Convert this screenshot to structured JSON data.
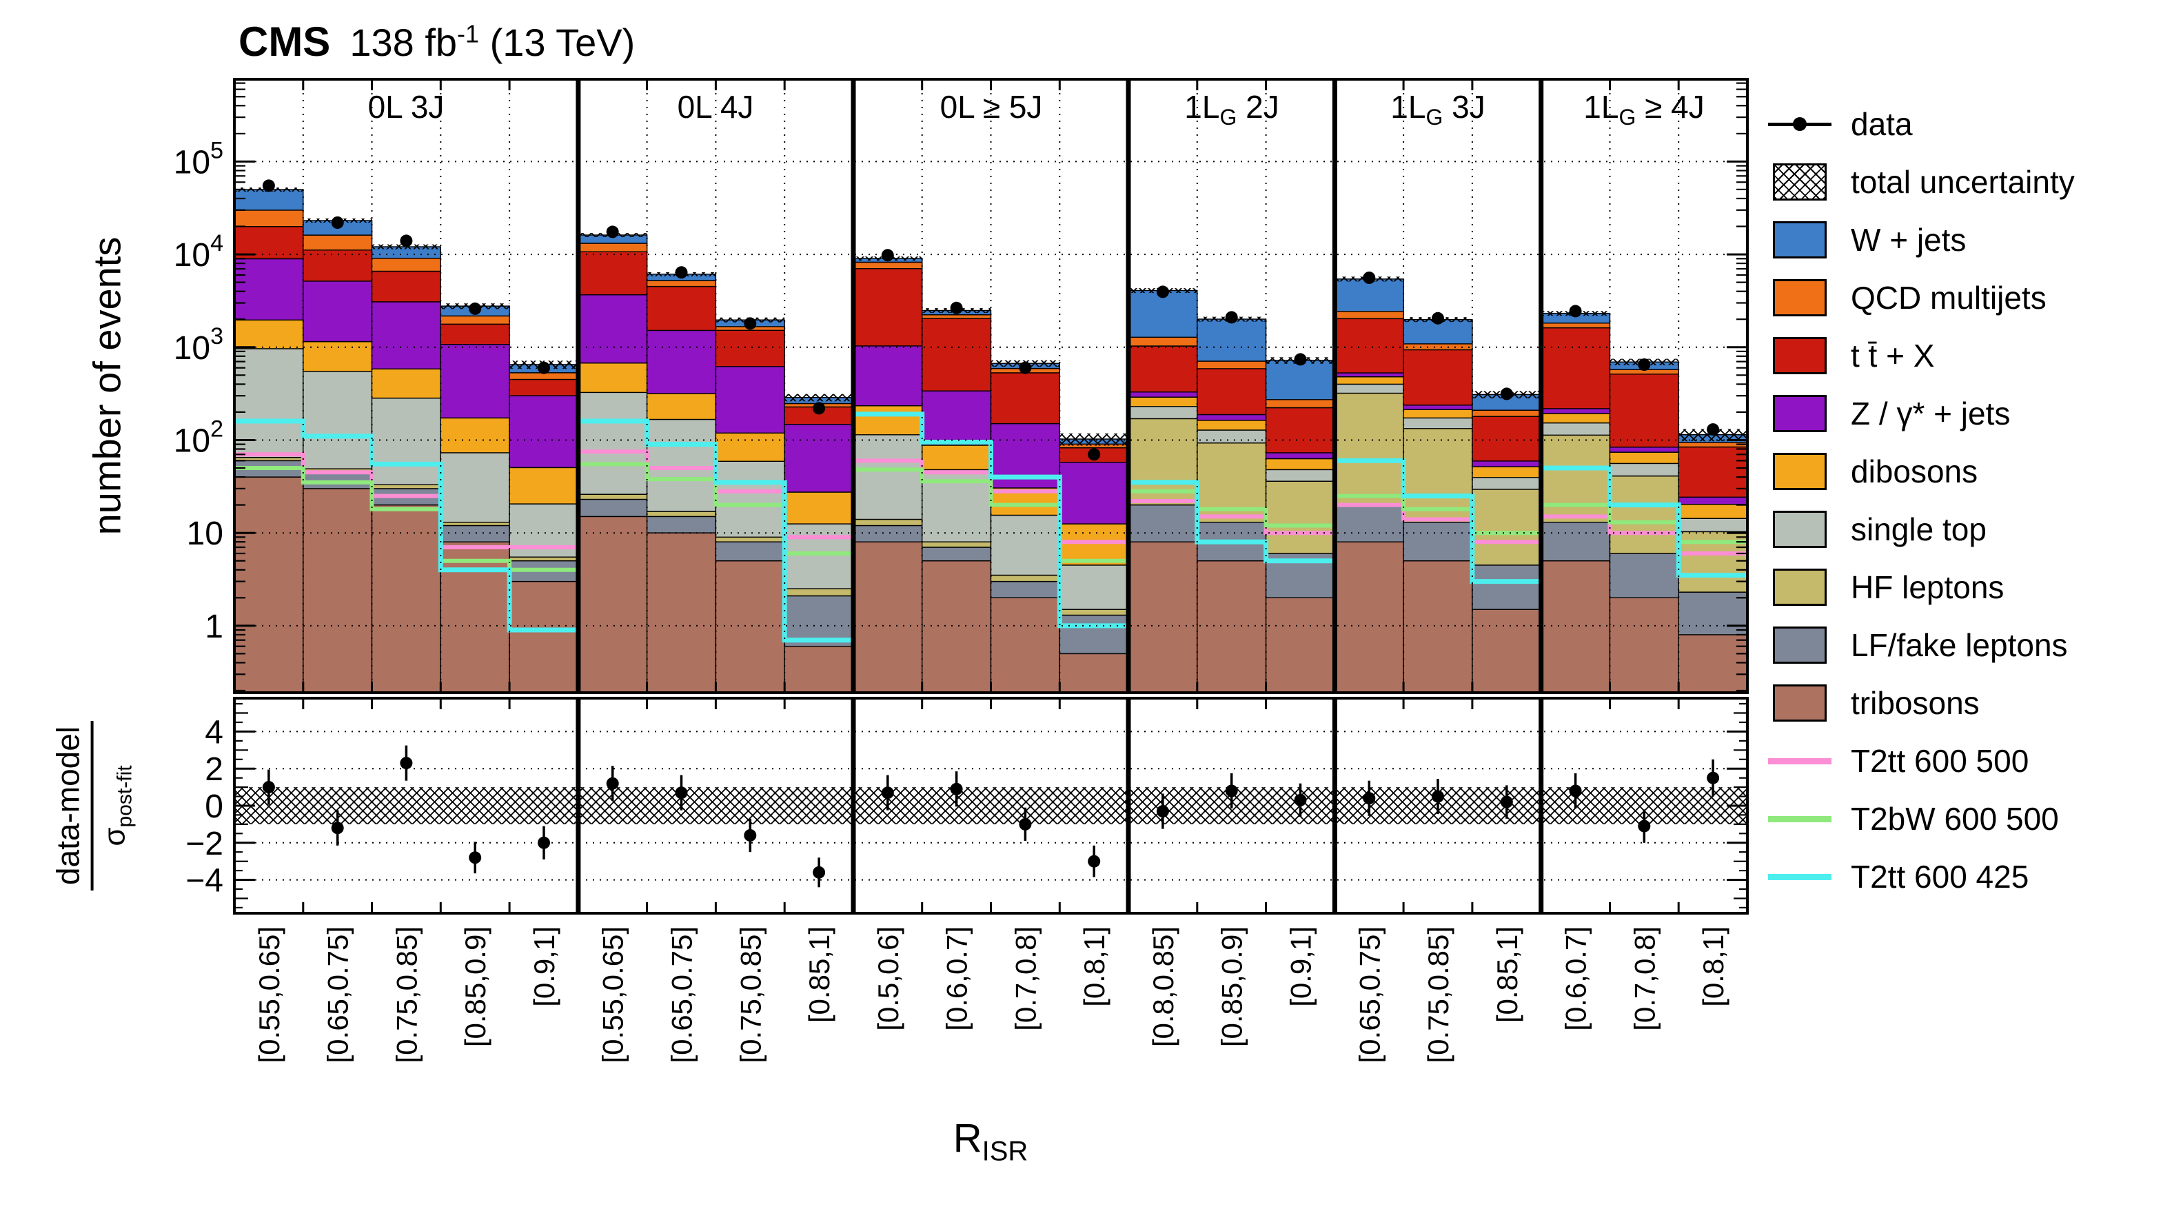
{
  "header": {
    "cms": "CMS",
    "lumi_pre": "138 fb",
    "lumi_sup": "-1",
    "lumi_post": " (13 TeV)"
  },
  "axes": {
    "y_main_title": "number of events",
    "ratio_numerator": "data-model",
    "ratio_sigma": "σ",
    "ratio_sigma_sub": "post-fit",
    "x_title": "R",
    "x_title_sub": "ISR",
    "y_main_ticks": [
      {
        "v": 1,
        "base": "1",
        "exp": ""
      },
      {
        "v": 10,
        "base": "10",
        "exp": ""
      },
      {
        "v": 100,
        "base": "10",
        "exp": "2"
      },
      {
        "v": 1000,
        "base": "10",
        "exp": "3"
      },
      {
        "v": 10000,
        "base": "10",
        "exp": "4"
      },
      {
        "v": 100000,
        "base": "10",
        "exp": "5"
      }
    ],
    "ratio_ticks": [
      {
        "v": 4,
        "label": "4"
      },
      {
        "v": 2,
        "label": "2"
      },
      {
        "v": 0,
        "label": "0"
      },
      {
        "v": -2,
        "label": "−2"
      },
      {
        "v": -4,
        "label": "−4"
      }
    ]
  },
  "legend": {
    "data_label": "data",
    "uncertainty_label": "total uncertainty"
  },
  "chart_data": {
    "type": "stacked-histogram-with-ratio",
    "log_y": true,
    "ylim_main": [
      0.19,
      770000
    ],
    "ylim_ratio": [
      -5.8,
      5.8
    ],
    "ratio_band": [
      -1,
      1
    ],
    "grid_decades": [
      1,
      10,
      100,
      1000,
      10000,
      100000
    ],
    "ratio_gridlines": [
      -4,
      -2,
      2,
      4
    ],
    "components": [
      {
        "key": "tribosons",
        "label": "tribosons",
        "color": "#ad7260"
      },
      {
        "key": "lf_fake_leptons",
        "label": "LF/fake leptons",
        "color": "#7e8798"
      },
      {
        "key": "hf_leptons",
        "label": "HF leptons",
        "color": "#c5b96b"
      },
      {
        "key": "single_top",
        "label": "single top",
        "color": "#b7c0b7"
      },
      {
        "key": "dibosons",
        "label": "dibosons",
        "color": "#f2a71c"
      },
      {
        "key": "z_jets",
        "label": "Z / γ* + jets",
        "color": "#8f14c4"
      },
      {
        "key": "ttbar_x",
        "label": "t t̄ + X",
        "color": "#cb1b10"
      },
      {
        "key": "qcd_multijets",
        "label": "QCD multijets",
        "color": "#f07018"
      },
      {
        "key": "w_jets",
        "label": "W + jets",
        "color": "#3e7dc8"
      }
    ],
    "signals": [
      {
        "key": "t2tt_600_500",
        "label": "T2tt 600 500",
        "color": "#fb8ed4",
        "width": 6
      },
      {
        "key": "t2bw_600_500",
        "label": "T2bW 600 500",
        "color": "#8fe97c",
        "width": 6
      },
      {
        "key": "t2tt_600_425",
        "label": "T2tt 600 425",
        "color": "#4deeee",
        "width": 7
      }
    ],
    "regions": [
      {
        "label_a": "0L 3J",
        "label_sub": "",
        "label_b": "",
        "bins": [
          "[0.55,0.65]",
          "[0.65,0.75]",
          "[0.75,0.85]",
          "[0.85,0.9]",
          "[0.9,1]"
        ],
        "stacks": {
          "tribosons": [
            40,
            30,
            20,
            8,
            3
          ],
          "lf_fake_leptons": [
            20,
            15,
            10,
            4,
            2
          ],
          "hf_leptons": [
            5,
            4,
            3,
            1,
            0.5
          ],
          "single_top": [
            900,
            500,
            250,
            60,
            15
          ],
          "dibosons": [
            1000,
            600,
            300,
            100,
            30
          ],
          "z_jets": [
            7000,
            4000,
            2500,
            900,
            250
          ],
          "ttbar_x": [
            11000,
            6000,
            3500,
            700,
            150
          ],
          "qcd_multijets": [
            10000,
            5000,
            2500,
            400,
            80
          ],
          "w_jets": [
            20000,
            7000,
            3000,
            600,
            120
          ]
        },
        "unc_rel": [
          0.05,
          0.05,
          0.06,
          0.07,
          0.1
        ],
        "data": [
          55000,
          22000,
          14000,
          2600,
          600
        ],
        "signals": {
          "t2tt_600_500": [
            70,
            45,
            25,
            7,
            7
          ],
          "t2bw_600_500": [
            50,
            35,
            18,
            5,
            4
          ],
          "t2tt_600_425": [
            160,
            110,
            55,
            4,
            0.9
          ]
        },
        "pulls": [
          1.0,
          -1.2,
          2.3,
          -2.8,
          -2.0
        ],
        "pull_err": [
          0.95,
          0.95,
          0.95,
          0.85,
          0.9
        ]
      },
      {
        "label_a": "0L 4J",
        "label_sub": "",
        "label_b": "",
        "bins": [
          "[0.55,0.65]",
          "[0.65,0.75]",
          "[0.75,0.85]",
          "[0.85,1]"
        ],
        "stacks": {
          "tribosons": [
            15,
            10,
            5,
            0.6
          ],
          "lf_fake_leptons": [
            8,
            5,
            3,
            1.5
          ],
          "hf_leptons": [
            3,
            2,
            1,
            0.4
          ],
          "single_top": [
            300,
            150,
            50,
            10
          ],
          "dibosons": [
            350,
            150,
            60,
            15
          ],
          "z_jets": [
            3000,
            1200,
            500,
            120
          ],
          "ttbar_x": [
            7000,
            3000,
            900,
            80
          ],
          "qcd_multijets": [
            2500,
            700,
            150,
            20
          ],
          "w_jets": [
            3000,
            900,
            300,
            40
          ]
        },
        "unc_rel": [
          0.05,
          0.05,
          0.06,
          0.09
        ],
        "data": [
          17500,
          6400,
          1800,
          220
        ],
        "signals": {
          "t2tt_600_500": [
            75,
            50,
            28,
            9
          ],
          "t2bw_600_500": [
            55,
            38,
            20,
            6
          ],
          "t2tt_600_425": [
            160,
            90,
            35,
            0.7
          ]
        },
        "pulls": [
          1.2,
          0.7,
          -1.6,
          -3.6
        ],
        "pull_err": [
          0.95,
          0.95,
          0.9,
          0.8
        ]
      },
      {
        "label_a": "0L ",
        "label_sub": "",
        "label_b": " ≥ 5J",
        "bins": [
          "[0.5,0.6]",
          "[0.6,0.7]",
          "[0.7,0.8]",
          "[0.8,1]"
        ],
        "stacks": {
          "tribosons": [
            8,
            5,
            2,
            0.5
          ],
          "lf_fake_leptons": [
            4,
            2,
            1,
            0.8
          ],
          "hf_leptons": [
            2,
            1,
            0.5,
            0.2
          ],
          "single_top": [
            100,
            40,
            12,
            3
          ],
          "dibosons": [
            120,
            40,
            15,
            8
          ],
          "z_jets": [
            800,
            250,
            120,
            45
          ],
          "ttbar_x": [
            6000,
            1700,
            380,
            25
          ],
          "qcd_multijets": [
            1200,
            200,
            60,
            8
          ],
          "w_jets": [
            800,
            250,
            80,
            12
          ]
        },
        "unc_rel": [
          0.05,
          0.06,
          0.08,
          0.15
        ],
        "data": [
          9800,
          2650,
          600,
          70
        ],
        "signals": {
          "t2tt_600_500": [
            60,
            45,
            28,
            8
          ],
          "t2bw_600_500": [
            48,
            36,
            20,
            5
          ],
          "t2tt_600_425": [
            190,
            95,
            40,
            1.0
          ]
        },
        "pulls": [
          0.7,
          0.9,
          -1.0,
          -3.0
        ],
        "pull_err": [
          0.95,
          0.95,
          0.9,
          0.85
        ]
      },
      {
        "label_a": "1L",
        "label_sub": "G",
        "label_b": " 2J",
        "bins": [
          "[0.8,0.85]",
          "[0.85,0.9]",
          "[0.9,1]"
        ],
        "stacks": {
          "tribosons": [
            8,
            5,
            2
          ],
          "lf_fake_leptons": [
            12,
            8,
            4
          ],
          "hf_leptons": [
            150,
            80,
            30
          ],
          "single_top": [
            60,
            35,
            12
          ],
          "dibosons": [
            60,
            35,
            15
          ],
          "z_jets": [
            40,
            25,
            10
          ],
          "ttbar_x": [
            700,
            400,
            150
          ],
          "qcd_multijets": [
            250,
            120,
            50
          ],
          "w_jets": [
            2800,
            1300,
            450
          ]
        },
        "unc_rel": [
          0.06,
          0.06,
          0.08
        ],
        "data": [
          3950,
          2100,
          740
        ],
        "signals": {
          "t2tt_600_500": [
            22,
            15,
            10
          ],
          "t2bw_600_500": [
            28,
            18,
            12
          ],
          "t2tt_600_425": [
            35,
            8,
            5
          ]
        },
        "pulls": [
          -0.3,
          0.8,
          0.3
        ],
        "pull_err": [
          0.95,
          0.95,
          0.9
        ]
      },
      {
        "label_a": "1L",
        "label_sub": "G",
        "label_b": " 3J",
        "bins": [
          "[0.65,0.75]",
          "[0.75,0.85]",
          "[0.85,1]"
        ],
        "stacks": {
          "tribosons": [
            8,
            5,
            1.5
          ],
          "lf_fake_leptons": [
            12,
            8,
            3
          ],
          "hf_leptons": [
            300,
            120,
            25
          ],
          "single_top": [
            80,
            40,
            10
          ],
          "dibosons": [
            80,
            40,
            12
          ],
          "z_jets": [
            50,
            25,
            8
          ],
          "ttbar_x": [
            1500,
            700,
            120
          ],
          "qcd_multijets": [
            400,
            150,
            30
          ],
          "w_jets": [
            3000,
            900,
            100
          ]
        },
        "unc_rel": [
          0.06,
          0.06,
          0.09
        ],
        "data": [
          5600,
          2050,
          315
        ],
        "signals": {
          "t2tt_600_500": [
            20,
            14,
            8
          ],
          "t2bw_600_500": [
            25,
            18,
            10
          ],
          "t2tt_600_425": [
            60,
            25,
            3
          ]
        },
        "pulls": [
          0.4,
          0.5,
          0.2
        ],
        "pull_err": [
          0.95,
          0.95,
          0.9
        ]
      },
      {
        "label_a": "1L",
        "label_sub": "G",
        "label_b": " ≥ 4J",
        "bins": [
          "[0.6,0.7]",
          "[0.7,0.8]",
          "[0.8,1]"
        ],
        "stacks": {
          "tribosons": [
            5,
            2,
            0.8
          ],
          "lf_fake_leptons": [
            8,
            4,
            1.5
          ],
          "hf_leptons": [
            100,
            35,
            8
          ],
          "single_top": [
            40,
            15,
            4
          ],
          "dibosons": [
            40,
            18,
            6
          ],
          "z_jets": [
            25,
            10,
            4
          ],
          "ttbar_x": [
            1400,
            430,
            60
          ],
          "qcd_multijets": [
            200,
            60,
            10
          ],
          "w_jets": [
            500,
            120,
            20
          ]
        },
        "unc_rel": [
          0.06,
          0.08,
          0.15
        ],
        "data": [
          2450,
          650,
          130
        ],
        "signals": {
          "t2tt_600_500": [
            15,
            10,
            6
          ],
          "t2bw_600_500": [
            20,
            13,
            8
          ],
          "t2tt_600_425": [
            50,
            20,
            3.5
          ]
        },
        "pulls": [
          0.8,
          -1.1,
          1.5
        ],
        "pull_err": [
          0.95,
          0.9,
          1.0
        ]
      }
    ]
  }
}
